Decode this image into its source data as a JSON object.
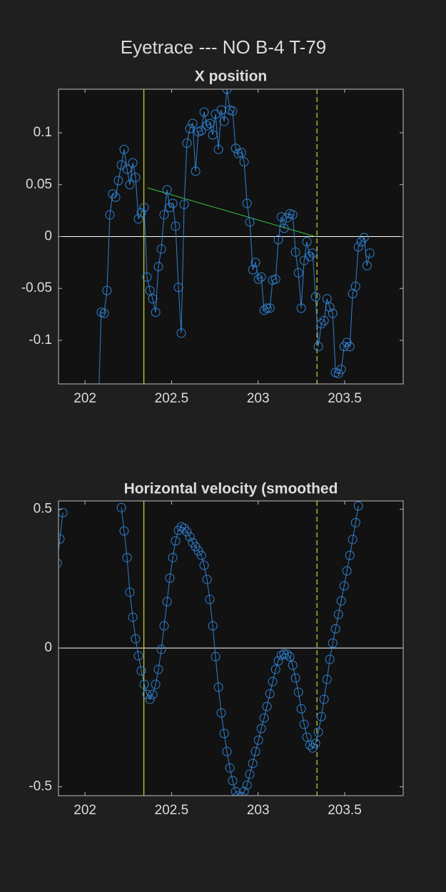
{
  "title": "Eyetrace --- NO B-4 T-79",
  "chart_data": [
    {
      "type": "line",
      "title": "X position",
      "xlim": [
        201.847,
        203.838
      ],
      "ylim": [
        -0.142,
        0.142
      ],
      "xticks": [
        202,
        202.5,
        203,
        203.5
      ],
      "yticks": [
        -0.1,
        -0.05,
        0,
        0.05,
        0.1
      ],
      "zero_line": 0,
      "zero_line_color": "#ffffff",
      "vlines": [
        {
          "x": 202.34,
          "style": "solid"
        },
        {
          "x": 203.34,
          "style": "dashed"
        }
      ],
      "vline_color": "#c8c832",
      "fit_line": {
        "x": [
          202.36,
          203.33
        ],
        "y": [
          0.047,
          0
        ],
        "color": "#3cc83c"
      },
      "marker": "circle",
      "series": [
        {
          "color": "#2f80d0",
          "x": [
            202.078,
            202.094,
            202.111,
            202.127,
            202.144,
            202.16,
            202.177,
            202.193,
            202.21,
            202.226,
            202.243,
            202.259,
            202.276,
            202.292,
            202.309,
            202.325,
            202.342,
            202.358,
            202.375,
            202.391,
            202.408,
            202.424,
            202.441,
            202.457,
            202.474,
            202.49,
            202.507,
            202.523,
            202.54,
            202.556,
            202.573,
            202.589,
            202.606,
            202.622,
            202.639,
            202.655,
            202.672,
            202.688,
            202.705,
            202.721,
            202.738,
            202.754,
            202.771,
            202.787,
            202.804,
            202.82,
            202.837,
            202.853,
            202.87,
            202.886,
            202.903,
            202.919,
            202.936,
            202.952,
            202.969,
            202.985,
            203.002,
            203.018,
            203.035,
            203.051,
            203.068,
            203.084,
            203.101,
            203.117,
            203.134,
            203.15,
            203.167,
            203.183,
            203.2,
            203.216,
            203.233,
            203.249,
            203.266,
            203.282,
            203.299,
            203.315,
            203.332,
            203.348,
            203.365,
            203.381,
            203.398,
            203.414,
            203.431,
            203.447,
            203.464,
            203.48,
            203.497,
            203.513,
            203.53,
            203.546,
            203.563,
            203.579,
            203.596,
            203.612,
            203.629,
            203.645
          ],
          "values": [
            -0.16,
            -0.073,
            -0.074,
            -0.052,
            0.021,
            0.041,
            0.038,
            0.054,
            0.069,
            0.084,
            0.065,
            0.05,
            0.071,
            0.057,
            0.017,
            0.023,
            0.028,
            -0.039,
            -0.052,
            -0.06,
            -0.073,
            -0.029,
            -0.012,
            0.021,
            0.045,
            0.028,
            0.032,
            0.01,
            -0.049,
            -0.093,
            0.031,
            0.09,
            0.104,
            0.109,
            0.063,
            0.101,
            0.102,
            0.12,
            0.107,
            0.109,
            0.098,
            0.118,
            0.084,
            0.122,
            0.111,
            0.142,
            0.122,
            0.121,
            0.085,
            0.08,
            0.081,
            0.072,
            0.032,
            0.014,
            -0.032,
            -0.025,
            -0.041,
            -0.039,
            -0.071,
            -0.069,
            -0.069,
            -0.042,
            -0.041,
            -0.003,
            0.019,
            0.008,
            0.018,
            0.022,
            0.021,
            -0.015,
            -0.035,
            -0.069,
            -0.023,
            -0.005,
            -0.019,
            -0.016,
            -0.058,
            -0.106,
            -0.084,
            -0.081,
            -0.06,
            -0.068,
            -0.074,
            -0.131,
            -0.132,
            -0.128,
            -0.106,
            -0.102,
            -0.106,
            -0.055,
            -0.048,
            -0.01,
            -0.005,
            -0.001,
            -0.028,
            -0.016
          ]
        }
      ]
    },
    {
      "type": "line",
      "title": "Horizontal velocity (smoothed",
      "xlim": [
        201.847,
        203.838
      ],
      "ylim": [
        -0.532,
        0.53
      ],
      "xticks": [
        202,
        202.5,
        203,
        203.5
      ],
      "yticks": [
        -0.5,
        0,
        0.5
      ],
      "zero_line": 0,
      "zero_line_color": "#ffffff",
      "vlines": [
        {
          "x": 202.34,
          "style": "solid"
        },
        {
          "x": 203.34,
          "style": "dashed"
        }
      ],
      "vline_color": "#c8c832",
      "marker": "circle",
      "series": [
        {
          "color": "#2f80d0",
          "x": [
            201.839,
            201.855,
            201.872,
            201.888,
            202.21,
            202.226,
            202.243,
            202.259,
            202.276,
            202.292,
            202.309,
            202.325,
            202.342,
            202.358,
            202.375,
            202.391,
            202.408,
            202.424,
            202.441,
            202.457,
            202.474,
            202.49,
            202.507,
            202.523,
            202.54,
            202.556,
            202.573,
            202.589,
            202.606,
            202.622,
            202.639,
            202.655,
            202.672,
            202.688,
            202.705,
            202.721,
            202.738,
            202.754,
            202.771,
            202.787,
            202.804,
            202.82,
            202.837,
            202.853,
            202.87,
            202.886,
            202.903,
            202.919,
            202.936,
            202.952,
            202.969,
            202.985,
            203.002,
            203.018,
            203.035,
            203.051,
            203.068,
            203.084,
            203.101,
            203.117,
            203.134,
            203.15,
            203.167,
            203.183,
            203.2,
            203.216,
            203.233,
            203.249,
            203.266,
            203.282,
            203.299,
            203.315,
            203.332,
            203.348,
            203.365,
            203.381,
            203.398,
            203.414,
            203.431,
            203.447,
            203.464,
            203.48,
            203.497,
            203.513,
            203.53,
            203.546,
            203.563,
            203.579
          ],
          "values": [
            0.306,
            0.393,
            0.488,
            null,
            0.506,
            0.422,
            0.326,
            0.201,
            0.111,
            0.033,
            -0.028,
            -0.082,
            -0.131,
            -0.167,
            -0.185,
            -0.167,
            -0.131,
            -0.077,
            -0.005,
            0.08,
            0.167,
            0.252,
            0.326,
            0.386,
            0.424,
            0.437,
            0.432,
            0.419,
            0.401,
            0.38,
            0.365,
            0.35,
            0.334,
            0.298,
            0.247,
            0.175,
            0.08,
            -0.031,
            -0.141,
            -0.234,
            -0.308,
            -0.373,
            -0.432,
            -0.478,
            -0.517,
            -0.532,
            -0.535,
            -0.517,
            -0.494,
            -0.455,
            -0.416,
            -0.373,
            -0.332,
            -0.29,
            -0.252,
            -0.211,
            -0.165,
            -0.121,
            -0.077,
            -0.046,
            -0.026,
            -0.021,
            -0.023,
            -0.031,
            -0.062,
            -0.108,
            -0.159,
            -0.219,
            -0.275,
            -0.321,
            -0.35,
            -0.36,
            -0.344,
            -0.303,
            -0.247,
            -0.185,
            -0.113,
            -0.041,
            0.018,
            0.069,
            0.121,
            0.17,
            0.224,
            0.278,
            0.334,
            0.391,
            0.452,
            0.512
          ]
        }
      ]
    }
  ]
}
